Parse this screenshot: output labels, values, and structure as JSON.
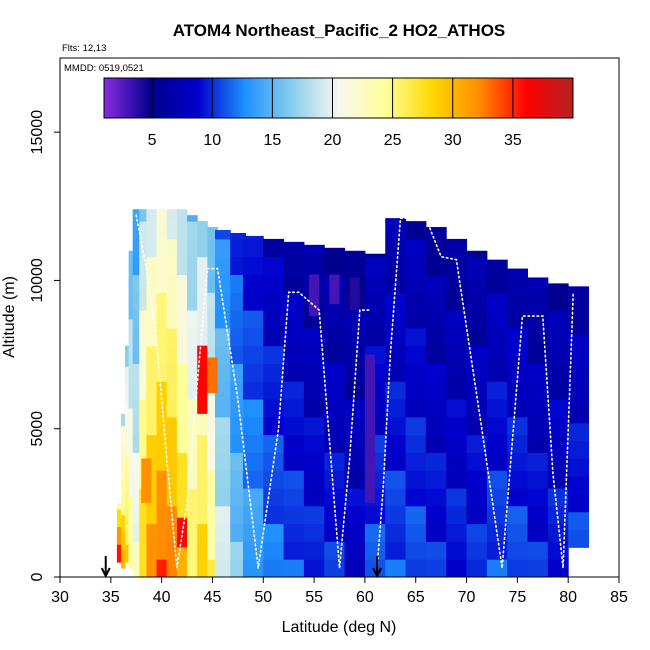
{
  "chart_data": {
    "type": "heatmap",
    "title": "ATOM4 Northeast_Pacific_2 HO2_ATHOS",
    "subtitle_lines": [
      "Flts: 12,13",
      "MMDD: 0519,0521"
    ],
    "xlabel": "Latitude (deg N)",
    "ylabel": "Altitude (m)",
    "xlim": [
      30,
      85
    ],
    "ylim": [
      0,
      17500
    ],
    "xticks": [
      30,
      35,
      40,
      45,
      50,
      55,
      60,
      65,
      70,
      75,
      80,
      85
    ],
    "yticks": [
      0,
      5000,
      10000,
      15000
    ],
    "colorbar": {
      "range": [
        1,
        40
      ],
      "ticks": [
        5,
        10,
        15,
        20,
        25,
        30,
        35
      ],
      "stops": [
        "#8a2be2",
        "#00008b",
        "#0000cd",
        "#1e90ff",
        "#87ceeb",
        "#f8f8f0",
        "#ffff99",
        "#ffd700",
        "#ff8c00",
        "#ff0000",
        "#b22222"
      ]
    },
    "markers": [
      {
        "x": 34.5,
        "symbol": "arrow-down"
      },
      {
        "x": 61.2,
        "symbol": "arrow-down"
      }
    ],
    "columns": [
      {
        "lat": 35.8,
        "lo": 500,
        "hi": 2500,
        "v": 33
      },
      {
        "lat": 36.2,
        "lo": 300,
        "hi": 5500,
        "v": 27
      },
      {
        "lat": 36.6,
        "lo": 500,
        "hi": 7800,
        "v": 25
      },
      {
        "lat": 37.0,
        "lo": 300,
        "hi": 11000,
        "v": 22
      },
      {
        "lat": 37.5,
        "lo": 0,
        "hi": 12400,
        "v": 20
      },
      {
        "lat": 38.2,
        "lo": 0,
        "hi": 12400,
        "v": 26
      },
      {
        "lat": 39.0,
        "lo": 0,
        "hi": 12400,
        "v": 29
      },
      {
        "lat": 40.0,
        "lo": 0,
        "hi": 12400,
        "v": 31
      },
      {
        "lat": 41.0,
        "lo": 0,
        "hi": 12400,
        "v": 30
      },
      {
        "lat": 42.0,
        "lo": 0,
        "hi": 12400,
        "v": 27
      },
      {
        "lat": 43.0,
        "lo": 0,
        "hi": 12200,
        "v": 24
      },
      {
        "lat": 44.0,
        "lo": 0,
        "hi": 12000,
        "v": 26
      },
      {
        "lat": 45.0,
        "lo": 0,
        "hi": 11800,
        "v": 23
      },
      {
        "lat": 46.0,
        "lo": 0,
        "hi": 11700,
        "v": 18
      },
      {
        "lat": 47.5,
        "lo": 0,
        "hi": 11600,
        "v": 15
      },
      {
        "lat": 49.0,
        "lo": 0,
        "hi": 11500,
        "v": 13
      },
      {
        "lat": 51.0,
        "lo": 0,
        "hi": 11400,
        "v": 11
      },
      {
        "lat": 53.0,
        "lo": 0,
        "hi": 11300,
        "v": 10
      },
      {
        "lat": 55.0,
        "lo": 0,
        "hi": 11200,
        "v": 9
      },
      {
        "lat": 57.0,
        "lo": 0,
        "hi": 11100,
        "v": 9
      },
      {
        "lat": 59.0,
        "lo": 0,
        "hi": 11000,
        "v": 8
      },
      {
        "lat": 61.0,
        "lo": 0,
        "hi": 10900,
        "v": 10
      },
      {
        "lat": 63.0,
        "lo": 0,
        "hi": 12100,
        "v": 10
      },
      {
        "lat": 65.0,
        "lo": 0,
        "hi": 12000,
        "v": 10
      },
      {
        "lat": 67.0,
        "lo": 0,
        "hi": 11800,
        "v": 9
      },
      {
        "lat": 69.0,
        "lo": 0,
        "hi": 11400,
        "v": 9
      },
      {
        "lat": 71.0,
        "lo": 0,
        "hi": 11000,
        "v": 9
      },
      {
        "lat": 73.0,
        "lo": 0,
        "hi": 10700,
        "v": 10
      },
      {
        "lat": 75.0,
        "lo": 0,
        "hi": 10400,
        "v": 10
      },
      {
        "lat": 77.0,
        "lo": 0,
        "hi": 10100,
        "v": 9
      },
      {
        "lat": 79.0,
        "lo": 0,
        "hi": 9900,
        "v": 9
      },
      {
        "lat": 81.0,
        "lo": 1000,
        "hi": 9800,
        "v": 9
      }
    ],
    "hotspots": [
      {
        "lat": 44.0,
        "lo": 5500,
        "hi": 7800,
        "v": 36
      },
      {
        "lat": 45.0,
        "lo": 6200,
        "hi": 7400,
        "v": 33
      },
      {
        "lat": 42.0,
        "lo": 1000,
        "hi": 2000,
        "v": 36
      },
      {
        "lat": 38.5,
        "lo": 2500,
        "hi": 4000,
        "v": 32
      },
      {
        "lat": 55.0,
        "lo": 8800,
        "hi": 10200,
        "v": 3
      },
      {
        "lat": 57.0,
        "lo": 9200,
        "hi": 10200,
        "v": 3
      },
      {
        "lat": 59.0,
        "lo": 9000,
        "hi": 10100,
        "v": 4
      },
      {
        "lat": 60.5,
        "lo": 2500,
        "hi": 7500,
        "v": 3
      }
    ],
    "flight_tracks": [
      {
        "name": "Flt 12",
        "x": [
          37.5,
          38.5,
          39.5,
          40.5,
          41.5,
          42.5,
          43.5,
          44.5,
          45.5,
          47.5,
          49.5,
          51.5,
          52.5,
          53.5,
          55.5,
          57.5,
          58.5,
          59.5,
          60.5
        ],
        "y": [
          12200,
          10400,
          8000,
          4000,
          300,
          2500,
          6500,
          10400,
          10400,
          6000,
          300,
          5000,
          9600,
          9600,
          9000,
          300,
          4000,
          9000,
          9000
        ]
      },
      {
        "name": "Flt 13",
        "x": [
          61.2,
          61.8,
          62.5,
          63.5,
          66.0,
          67.5,
          69.0,
          71.5,
          73.5,
          75.5,
          76.5,
          77.5,
          78.5,
          79.5,
          80.5
        ],
        "y": [
          300,
          3000,
          7500,
          12100,
          12100,
          10800,
          10700,
          5000,
          300,
          8800,
          8800,
          8800,
          3500,
          300,
          9600
        ]
      }
    ]
  }
}
